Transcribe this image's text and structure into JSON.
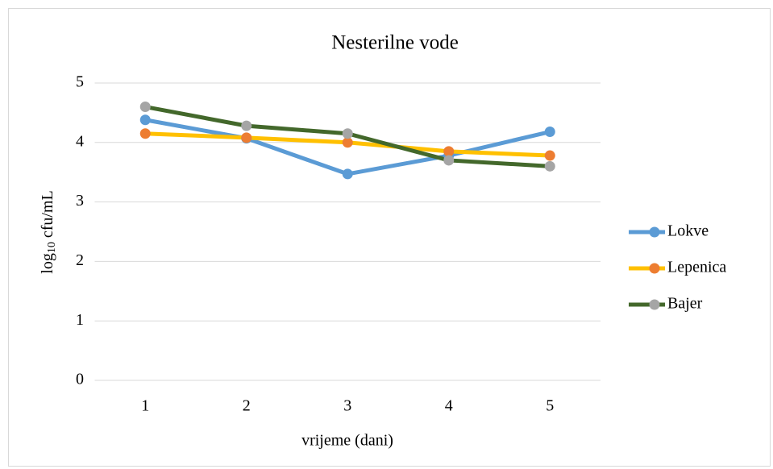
{
  "chart_data": {
    "type": "line",
    "title": "Nesterilne vode",
    "x_label": "vrijeme (dani)",
    "y_label": [
      "log",
      "10",
      "cfu/mL"
    ],
    "categories": [
      "1",
      "2",
      "3",
      "4",
      "5"
    ],
    "series": [
      {
        "name": "Lokve",
        "color": "#5b9bd5",
        "marker_color": "#5b9bd5",
        "values": [
          4.38,
          4.07,
          3.47,
          3.78,
          4.18
        ]
      },
      {
        "name": "Lepenica",
        "color": "#ffc000",
        "marker_color": "#ed7d31",
        "values": [
          4.15,
          4.08,
          4.0,
          3.85,
          3.78
        ]
      },
      {
        "name": "Bajer",
        "color": "#43682b",
        "marker_color": "#a5a5a5",
        "values": [
          4.6,
          4.28,
          4.15,
          3.7,
          3.6
        ]
      }
    ],
    "ylim": [
      0,
      5
    ],
    "yticks": [
      0,
      1,
      2,
      3,
      4,
      5
    ],
    "grid": true,
    "legend": "right"
  }
}
